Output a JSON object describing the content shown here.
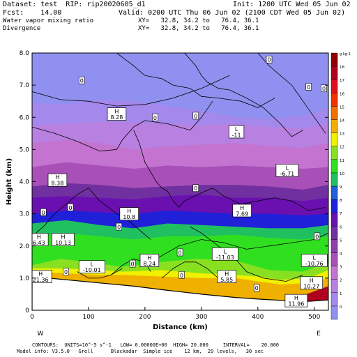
{
  "header": {
    "dataset": "Dataset: test  RIP: rip20020605_d1",
    "init": "Init: 1200 UTC Wed 05 Jun 02",
    "fcst": "Fcst:    14.00",
    "valid": "Valid: 0200 UTC Thu 06 Jun 02 (2100 CDT Wed 05 Jun 02)",
    "field1": "Water vapor mixing ratio",
    "xy1": "XY=   32.8, 34.2 to   76.4, 36.1",
    "field2": "Divergence",
    "xy2": "XY=   32.8, 34.2 to   76.4, 36.1"
  },
  "footer": {
    "line1": "CONTOURS:  UNITS=10^-5 s^-1   LOW= 0.00000E+00  HIGH= 20.000     INTERVAL=    20.000",
    "line2": "Model info: V3.5.0   Grell      Blackadar  Simple ice    12 km,  29 levels,   30 sec"
  },
  "chart_data": {
    "type": "heatmap",
    "title": "Water vapor mixing ratio",
    "xlabel": "Distance (km)",
    "ylabel": "Height (km)",
    "xlim": [
      0,
      525
    ],
    "ylim": [
      0,
      8
    ],
    "xticks": [
      0,
      100,
      200,
      300,
      400,
      500
    ],
    "yticks": [
      "0",
      "1.0",
      "2.0",
      "3.0",
      "4.0",
      "5.0",
      "6.0",
      "7.0",
      "8.0"
    ],
    "x_endpoints": {
      "left": "W",
      "right": "E"
    },
    "colorbar": {
      "unit": "g kg-1",
      "levels": [
        0,
        1,
        2,
        3,
        4,
        5,
        6,
        7,
        8,
        9,
        10,
        11,
        12,
        13,
        14,
        15,
        16,
        17,
        18
      ],
      "labels": [
        "0",
        "1",
        "2",
        "3",
        "4",
        "5",
        "6",
        "7",
        "8",
        "9",
        "10",
        "11",
        "12",
        "13",
        "14",
        "15",
        "16",
        "17",
        "18"
      ],
      "colors": [
        "#9090f0",
        "#a488ec",
        "#b880e0",
        "#c474d0",
        "#a850b8",
        "#8c40a8",
        "#7030a0",
        "#6a10b0",
        "#2020d8",
        "#2060d8",
        "#20c060",
        "#30e020",
        "#88e020",
        "#f0f000",
        "#f0b000",
        "#f07000",
        "#f03000",
        "#e01020",
        "#b00020",
        "#900000"
      ]
    },
    "terrain": {
      "x": [
        0,
        60,
        120,
        180,
        240,
        300,
        360,
        400,
        450,
        490,
        525
      ],
      "height_km": [
        1.05,
        0.95,
        0.85,
        0.75,
        0.62,
        0.5,
        0.4,
        0.35,
        0.3,
        0.28,
        0.32
      ]
    },
    "bands": [
      {
        "level": 18,
        "x": [
          470,
          525
        ],
        "top": [
          0.4,
          0.75
        ]
      },
      {
        "level": 14,
        "x": [
          0,
          60,
          120,
          160,
          230,
          300,
          360,
          400,
          440,
          490,
          525
        ],
        "top": [
          1.2,
          1.15,
          1.1,
          1.1,
          1.05,
          1.0,
          1.0,
          0.9,
          0.8,
          0.85,
          1.0
        ]
      },
      {
        "level": 13,
        "x": [
          0,
          60,
          120,
          160,
          230,
          300,
          360,
          400,
          440,
          490,
          525
        ],
        "top": [
          1.3,
          1.3,
          1.25,
          1.2,
          1.25,
          1.15,
          1.1,
          1.05,
          0.95,
          1.0,
          1.25
        ]
      },
      {
        "level": 12,
        "x": [
          0,
          50,
          100,
          160,
          230,
          290,
          360,
          420,
          480,
          525
        ],
        "top": [
          1.4,
          1.6,
          1.5,
          1.35,
          1.5,
          1.6,
          1.55,
          1.25,
          1.2,
          1.5
        ]
      },
      {
        "level": 11,
        "x": [
          0,
          60,
          120,
          180,
          240,
          300,
          360,
          420,
          480,
          525
        ],
        "top": [
          2.3,
          2.4,
          2.3,
          2.2,
          2.3,
          2.3,
          2.35,
          2.25,
          2.2,
          2.3
        ]
      },
      {
        "level": 10,
        "x": [
          0,
          60,
          120,
          180,
          240,
          300,
          360,
          420,
          480,
          525
        ],
        "top": [
          2.7,
          2.8,
          2.65,
          2.55,
          2.7,
          2.65,
          2.6,
          2.55,
          2.55,
          2.65
        ]
      },
      {
        "level": 8,
        "x": [
          0,
          60,
          120,
          180,
          240,
          300,
          360,
          420,
          480,
          525
        ],
        "top": [
          3.0,
          3.1,
          3.05,
          3.0,
          3.1,
          3.05,
          3.0,
          3.0,
          2.95,
          3.0
        ]
      },
      {
        "level": 7,
        "x": [
          0,
          60,
          120,
          180,
          240,
          300,
          360,
          420,
          480,
          525
        ],
        "top": [
          3.5,
          3.55,
          3.5,
          3.45,
          3.55,
          3.6,
          3.5,
          3.5,
          3.4,
          3.5
        ]
      },
      {
        "level": 6,
        "x": [
          0,
          60,
          120,
          180,
          240,
          300,
          360,
          420,
          480,
          525
        ],
        "top": [
          3.85,
          3.95,
          3.9,
          3.8,
          3.85,
          3.9,
          3.9,
          3.85,
          3.75,
          3.9
        ]
      },
      {
        "level": 4,
        "x": [
          0,
          60,
          120,
          180,
          240,
          300,
          360,
          420,
          480,
          525
        ],
        "top": [
          4.45,
          4.6,
          4.5,
          4.4,
          4.5,
          4.45,
          4.5,
          4.45,
          4.4,
          4.45
        ]
      },
      {
        "level": 3,
        "x": [
          0,
          60,
          120,
          180,
          240,
          300,
          360,
          420,
          480,
          525
        ],
        "top": [
          5.2,
          5.3,
          5.2,
          5.0,
          5.1,
          5.15,
          5.2,
          5.1,
          5.05,
          5.2
        ]
      },
      {
        "level": 2,
        "x": [
          0,
          60,
          120,
          180,
          240,
          300,
          360,
          420,
          480,
          525
        ],
        "top": [
          5.75,
          5.8,
          5.85,
          5.85,
          5.8,
          5.75,
          5.8,
          5.7,
          5.65,
          5.8
        ]
      },
      {
        "level": 1,
        "x": [
          0,
          60,
          120,
          180,
          240,
          300,
          360,
          420,
          480,
          525
        ],
        "top": [
          6.45,
          6.4,
          6.55,
          6.5,
          6.35,
          6.2,
          6.0,
          5.95,
          6.05,
          6.3
        ]
      }
    ],
    "contours": [
      {
        "x": [
          0,
          40,
          80,
          120,
          150,
          160,
          180,
          200,
          240,
          280,
          300,
          320
        ],
        "y": [
          5.7,
          5.5,
          5.25,
          4.95,
          5.0,
          5.3,
          5.7,
          5.9,
          5.8,
          5.6,
          6.0,
          6.5
        ]
      },
      {
        "x": [
          0,
          50,
          100,
          150,
          200,
          250,
          300,
          350
        ],
        "y": [
          6.8,
          6.55,
          6.5,
          6.35,
          6.4,
          6.6,
          6.9,
          7.3
        ]
      },
      {
        "x": [
          150,
          180,
          200,
          230,
          250,
          280,
          300,
          330,
          370,
          400,
          430
        ],
        "y": [
          8.0,
          7.6,
          7.3,
          7.2,
          7.0,
          6.9,
          6.65,
          6.6,
          6.5,
          6.3,
          6.6
        ]
      },
      {
        "x": [
          270,
          290,
          300,
          310,
          330,
          350,
          380,
          410,
          440,
          460,
          480
        ],
        "y": [
          8.0,
          7.6,
          7.3,
          7.1,
          6.9,
          6.85,
          6.6,
          6.3,
          5.8,
          5.4,
          5.6
        ]
      },
      {
        "x": [
          400,
          420,
          440,
          460,
          480,
          500,
          520
        ],
        "y": [
          8.0,
          7.6,
          7.3,
          7.0,
          6.5,
          6.0,
          5.5
        ]
      },
      {
        "x": [
          180,
          190,
          200,
          210,
          220,
          230,
          240,
          250,
          260,
          270,
          300,
          320,
          340,
          370,
          400,
          430,
          460,
          490,
          520
        ],
        "y": [
          5.6,
          5.2,
          4.6,
          4.3,
          4.0,
          3.8,
          3.7,
          3.4,
          3.2,
          3.4,
          3.65,
          3.8,
          3.55,
          3.3,
          3.4,
          3.5,
          3.4,
          3.1,
          3.2
        ]
      },
      {
        "x": [
          0,
          20,
          40,
          60,
          80,
          100,
          120,
          150,
          170,
          190,
          210
        ],
        "y": [
          2.3,
          2.6,
          3.0,
          3.3,
          3.6,
          3.8,
          3.4,
          3.0,
          2.8,
          2.5,
          2.2
        ]
      },
      {
        "x": [
          140,
          160,
          180,
          200,
          210
        ],
        "y": [
          1.1,
          1.4,
          1.6,
          1.5,
          1.2
        ]
      },
      {
        "x": [
          220,
          240,
          260,
          300,
          340,
          380,
          420,
          460,
          500,
          525
        ],
        "y": [
          1.6,
          1.8,
          2.0,
          2.2,
          2.1,
          1.9,
          2.0,
          2.1,
          2.2,
          2.4
        ]
      },
      {
        "x": [
          280,
          300,
          330,
          360,
          380,
          410,
          450,
          480
        ],
        "y": [
          2.6,
          2.4,
          2.0,
          1.6,
          1.2,
          1.0,
          0.9,
          1.1
        ]
      },
      {
        "x": [
          230,
          250,
          270,
          290,
          310,
          330
        ],
        "y": [
          1.0,
          1.3,
          1.5,
          1.5,
          1.3,
          1.0
        ]
      },
      {
        "x": [
          80,
          100,
          120,
          140,
          160
        ],
        "y": [
          1.2,
          1.0,
          1.0,
          1.1,
          1.3
        ]
      }
    ],
    "annotations": [
      {
        "kind": "H",
        "value": "8.28",
        "x": 150,
        "y": 6.1
      },
      {
        "kind": "L",
        "value": "-11",
        "x": 362,
        "y": 5.55
      },
      {
        "kind": "L",
        "value": "-6.71",
        "x": 452,
        "y": 4.35
      },
      {
        "kind": "H",
        "value": "8.38",
        "x": 45,
        "y": 4.05
      },
      {
        "kind": "H",
        "value": "7.69",
        "x": 372,
        "y": 3.1
      },
      {
        "kind": "H",
        "value": "10.8",
        "x": 172,
        "y": 3.0
      },
      {
        "kind": "H",
        "value": "6.43",
        "x": 12,
        "y": 2.2
      },
      {
        "kind": "H",
        "value": "10.13",
        "x": 55,
        "y": 2.2
      },
      {
        "kind": "L",
        "value": "-11.03",
        "x": 342,
        "y": 1.75
      },
      {
        "kind": "L",
        "value": "-10.76",
        "x": 500,
        "y": 1.55
      },
      {
        "kind": "H",
        "value": "8.24",
        "x": 208,
        "y": 1.55
      },
      {
        "kind": "L",
        "value": "-10.01",
        "x": 106,
        "y": 1.35
      },
      {
        "kind": "H",
        "value": "5.85",
        "x": 345,
        "y": 1.05
      },
      {
        "kind": "H",
        "value": "10.27",
        "x": 495,
        "y": 0.85
      },
      {
        "kind": "H",
        "value": "21.36",
        "x": 15,
        "y": 1.05
      },
      {
        "kind": "H",
        "value": "11.96",
        "x": 468,
        "y": 0.3
      },
      {
        "kind": "zero",
        "value": "0",
        "x": 420,
        "y": 7.8
      },
      {
        "kind": "zero",
        "value": "0",
        "x": 88,
        "y": 7.15
      },
      {
        "kind": "zero",
        "value": "0",
        "x": 490,
        "y": 6.95
      },
      {
        "kind": "zero",
        "value": "0",
        "x": 218,
        "y": 6.0
      },
      {
        "kind": "zero",
        "value": "0",
        "x": 290,
        "y": 6.05
      },
      {
        "kind": "zero",
        "value": "0",
        "x": 517,
        "y": 6.9
      },
      {
        "kind": "zero",
        "value": "0",
        "x": 290,
        "y": 3.8
      },
      {
        "kind": "zero",
        "value": "0",
        "x": 20,
        "y": 3.05
      },
      {
        "kind": "zero",
        "value": "0",
        "x": 68,
        "y": 3.2
      },
      {
        "kind": "zero",
        "value": "0",
        "x": 154,
        "y": 2.6
      },
      {
        "kind": "zero",
        "value": "0",
        "x": 505,
        "y": 2.3
      },
      {
        "kind": "zero",
        "value": "0",
        "x": 262,
        "y": 1.8
      },
      {
        "kind": "zero",
        "value": "0",
        "x": 178,
        "y": 1.45
      },
      {
        "kind": "zero",
        "value": "0",
        "x": 60,
        "y": 1.2
      },
      {
        "kind": "zero",
        "value": "0",
        "x": 265,
        "y": 1.1
      },
      {
        "kind": "zero",
        "value": "0",
        "x": 398,
        "y": 0.7
      }
    ]
  }
}
